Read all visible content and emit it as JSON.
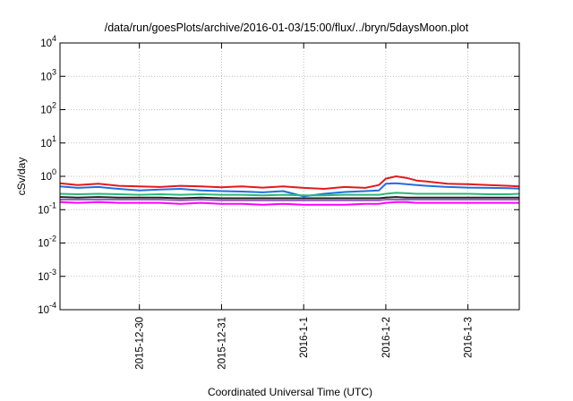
{
  "chart_data": {
    "type": "line",
    "title": "/data/run/goesPlots/archive/2016-01-03/15:00/flux/../bryn/5daysMoon.plot",
    "xlabel": "Coordinated Universal Time (UTC)",
    "ylabel": "cSv/day",
    "yscale": "log",
    "ylim": [
      0.0001,
      10000
    ],
    "xlim": [
      "2015-12-29 00:48",
      "2016-01-03 15:00"
    ],
    "grid": true,
    "legend": "none",
    "y_ticks": [
      {
        "base": "10",
        "exp": "-4"
      },
      {
        "base": "10",
        "exp": "-3"
      },
      {
        "base": "10",
        "exp": "-2"
      },
      {
        "base": "10",
        "exp": "-1"
      },
      {
        "base": "10",
        "exp": "0"
      },
      {
        "base": "10",
        "exp": "1"
      },
      {
        "base": "10",
        "exp": "2"
      },
      {
        "base": "10",
        "exp": "3"
      },
      {
        "base": "10",
        "exp": "4"
      }
    ],
    "x_ticks": [
      {
        "label": "2015-12-30",
        "date": "2015-12-30"
      },
      {
        "label": "2015-12-31",
        "date": "2015-12-31"
      },
      {
        "label": "2016-1-1",
        "date": "2016-01-01"
      },
      {
        "label": "2016-1-2",
        "date": "2016-01-02"
      },
      {
        "label": "2016-1-3",
        "date": "2016-01-03"
      }
    ],
    "x": [
      "2015-12-29 00:48",
      "2015-12-29 06:00",
      "2015-12-29 12:00",
      "2015-12-29 18:00",
      "2015-12-30 00:00",
      "2015-12-30 06:00",
      "2015-12-30 12:00",
      "2015-12-30 18:00",
      "2015-12-31 00:00",
      "2015-12-31 06:00",
      "2015-12-31 12:00",
      "2015-12-31 18:00",
      "2016-01-01 00:00",
      "2016-01-01 06:00",
      "2016-01-01 12:00",
      "2016-01-01 18:00",
      "2016-01-01 22:00",
      "2016-01-02 00:00",
      "2016-01-02 03:00",
      "2016-01-02 06:00",
      "2016-01-02 09:00",
      "2016-01-02 12:00",
      "2016-01-02 18:00",
      "2016-01-03 00:00",
      "2016-01-03 06:00",
      "2016-01-03 12:00",
      "2016-01-03 15:00"
    ],
    "series": [
      {
        "color": "#e31a1c",
        "values": [
          0.62,
          0.55,
          0.6,
          0.52,
          0.5,
          0.48,
          0.52,
          0.5,
          0.47,
          0.5,
          0.46,
          0.5,
          0.45,
          0.42,
          0.48,
          0.45,
          0.55,
          0.85,
          1.0,
          0.9,
          0.75,
          0.7,
          0.6,
          0.58,
          0.55,
          0.52,
          0.5
        ]
      },
      {
        "color": "#1f6fe0",
        "values": [
          0.5,
          0.45,
          0.48,
          0.42,
          0.38,
          0.4,
          0.42,
          0.38,
          0.36,
          0.35,
          0.33,
          0.36,
          0.25,
          0.3,
          0.34,
          0.36,
          0.38,
          0.6,
          0.62,
          0.58,
          0.55,
          0.52,
          0.48,
          0.46,
          0.45,
          0.44,
          0.43
        ]
      },
      {
        "color": "#2ab87a",
        "values": [
          0.3,
          0.29,
          0.3,
          0.29,
          0.28,
          0.29,
          0.28,
          0.29,
          0.28,
          0.28,
          0.27,
          0.28,
          0.27,
          0.27,
          0.28,
          0.28,
          0.28,
          0.3,
          0.32,
          0.31,
          0.3,
          0.3,
          0.3,
          0.3,
          0.29,
          0.29,
          0.3
        ]
      },
      {
        "color": "#222222",
        "values": [
          0.24,
          0.23,
          0.24,
          0.23,
          0.23,
          0.23,
          0.22,
          0.23,
          0.22,
          0.22,
          0.22,
          0.22,
          0.22,
          0.22,
          0.22,
          0.22,
          0.22,
          0.23,
          0.24,
          0.23,
          0.23,
          0.23,
          0.23,
          0.23,
          0.23,
          0.23,
          0.23
        ]
      },
      {
        "color": "#9b5fc0",
        "values": [
          0.2,
          0.2,
          0.2,
          0.2,
          0.2,
          0.2,
          0.19,
          0.2,
          0.19,
          0.19,
          0.19,
          0.19,
          0.19,
          0.19,
          0.19,
          0.19,
          0.19,
          0.2,
          0.2,
          0.2,
          0.2,
          0.2,
          0.2,
          0.2,
          0.2,
          0.2,
          0.2
        ]
      },
      {
        "color": "#ff00ff",
        "values": [
          0.17,
          0.16,
          0.17,
          0.16,
          0.16,
          0.16,
          0.15,
          0.16,
          0.15,
          0.15,
          0.14,
          0.15,
          0.14,
          0.14,
          0.14,
          0.15,
          0.15,
          0.16,
          0.17,
          0.17,
          0.16,
          0.16,
          0.16,
          0.16,
          0.16,
          0.16,
          0.16
        ]
      }
    ]
  }
}
